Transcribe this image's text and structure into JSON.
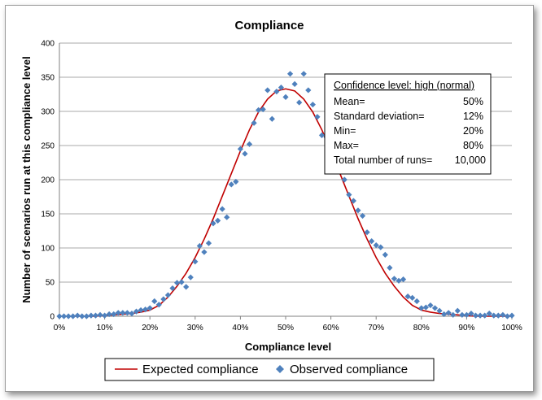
{
  "chart_data": {
    "type": "scatter",
    "title": "Compliance",
    "xlabel": "Compliance level",
    "ylabel": "Number of scenarios run at this compliance level",
    "xlim": [
      0,
      100
    ],
    "ylim": [
      0,
      400
    ],
    "x_ticks": [
      "0%",
      "10%",
      "20%",
      "30%",
      "40%",
      "50%",
      "60%",
      "70%",
      "80%",
      "90%",
      "100%"
    ],
    "y_ticks": [
      "0",
      "50",
      "100",
      "150",
      "200",
      "250",
      "300",
      "350",
      "400"
    ],
    "grid": true,
    "legend_position": "bottom",
    "series": [
      {
        "name": "Expected compliance",
        "kind": "line",
        "color": "#c00000",
        "x": [
          0,
          2,
          4,
          6,
          8,
          10,
          12,
          14,
          16,
          18,
          20,
          22,
          24,
          26,
          28,
          30,
          32,
          34,
          36,
          38,
          40,
          42,
          44,
          46,
          48,
          50,
          52,
          54,
          56,
          58,
          60,
          62,
          64,
          66,
          68,
          70,
          72,
          74,
          76,
          78,
          80,
          82,
          84,
          86,
          88,
          90,
          92,
          94,
          96,
          98,
          100
        ],
        "values": [
          0,
          0,
          0,
          0,
          0,
          1,
          2,
          3,
          4,
          6,
          9,
          16,
          28,
          44,
          63,
          86,
          113,
          143,
          176,
          209,
          242,
          273,
          299,
          318,
          330,
          333,
          330,
          318,
          299,
          273,
          242,
          209,
          176,
          143,
          113,
          86,
          63,
          44,
          28,
          16,
          9,
          6,
          4,
          3,
          2,
          1,
          0,
          0,
          0,
          0,
          0
        ]
      },
      {
        "name": "Observed compliance",
        "kind": "scatter",
        "color": "#4f81bd",
        "x": [
          0,
          1,
          2,
          3,
          4,
          5,
          6,
          7,
          8,
          9,
          10,
          11,
          12,
          13,
          14,
          15,
          16,
          17,
          18,
          19,
          20,
          21,
          22,
          23,
          24,
          25,
          26,
          27,
          28,
          29,
          30,
          31,
          32,
          33,
          34,
          35,
          36,
          37,
          38,
          39,
          40,
          41,
          42,
          43,
          44,
          45,
          46,
          47,
          48,
          49,
          50,
          51,
          52,
          53,
          54,
          55,
          56,
          57,
          58,
          59,
          60,
          61,
          62,
          63,
          64,
          65,
          66,
          67,
          68,
          69,
          70,
          71,
          72,
          73,
          74,
          75,
          76,
          77,
          78,
          79,
          80,
          81,
          82,
          83,
          84,
          85,
          86,
          87,
          88,
          89,
          90,
          91,
          92,
          93,
          94,
          95,
          96,
          97,
          98,
          99,
          100
        ],
        "values": [
          0,
          0,
          0,
          0,
          1,
          0,
          0,
          1,
          1,
          2,
          1,
          3,
          3,
          5,
          5,
          5,
          4,
          7,
          9,
          10,
          12,
          22,
          17,
          25,
          31,
          41,
          49,
          50,
          43,
          57,
          80,
          103,
          94,
          107,
          136,
          140,
          157,
          145,
          193,
          197,
          245,
          238,
          252,
          283,
          302,
          303,
          331,
          289,
          329,
          335,
          321,
          355,
          340,
          313,
          355,
          331,
          310,
          292,
          265,
          262,
          226,
          234,
          218,
          200,
          178,
          169,
          155,
          147,
          123,
          110,
          104,
          101,
          90,
          71,
          55,
          52,
          54,
          29,
          27,
          22,
          12,
          13,
          16,
          12,
          8,
          3,
          5,
          2,
          8,
          2,
          2,
          4,
          1,
          1,
          1,
          4,
          1,
          1,
          2,
          0,
          1
        ]
      }
    ],
    "info_box": {
      "heading": "Confidence level: high (normal)",
      "rows": [
        {
          "label": "Mean=",
          "value": "50%"
        },
        {
          "label": "Standard deviation=",
          "value": "12%"
        },
        {
          "label": "Min=",
          "value": "20%"
        },
        {
          "label": "Max=",
          "value": "80%"
        },
        {
          "label": "Total number of runs=",
          "value": "10,000"
        }
      ]
    }
  },
  "colors": {
    "grid": "#8c8c8c",
    "axis": "#808080",
    "expected_line": "#c00000",
    "observed_marker": "#4f81bd"
  }
}
